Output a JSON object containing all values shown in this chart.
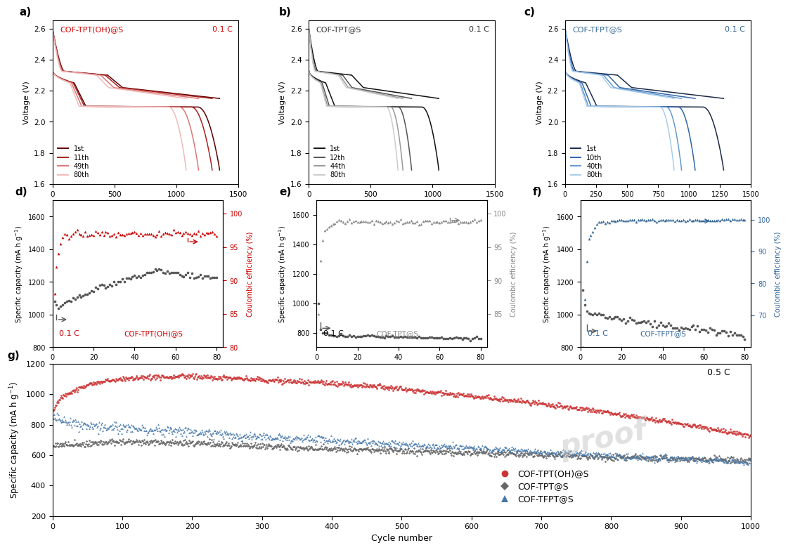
{
  "panel_a": {
    "title": "COF-TPT(OH)@S",
    "rate": "0.1 C",
    "title_color": "#cc0000",
    "rate_color": "#cc0000",
    "legend": [
      "1st",
      "11th",
      "49th",
      "80th"
    ],
    "colors": [
      "#5a0000",
      "#aa2222",
      "#dd7777",
      "#f0bbbb"
    ],
    "caps": [
      1350,
      1290,
      1180,
      1080
    ],
    "xlim": [
      0,
      1500
    ],
    "ylim": [
      1.6,
      2.65
    ],
    "yticks": [
      1.6,
      1.8,
      2.0,
      2.2,
      2.4,
      2.6
    ],
    "xticks": [
      0,
      500,
      1000,
      1500
    ]
  },
  "panel_b": {
    "title": "COF-TPT@S",
    "rate": "0.1 C",
    "title_color": "#333333",
    "rate_color": "#333333",
    "legend": [
      "1st",
      "12th",
      "44th",
      "80th"
    ],
    "colors": [
      "#111111",
      "#555555",
      "#999999",
      "#cccccc"
    ],
    "caps": [
      1050,
      830,
      760,
      720
    ],
    "xlim": [
      0,
      1500
    ],
    "ylim": [
      1.6,
      2.65
    ],
    "yticks": [
      1.6,
      1.8,
      2.0,
      2.2,
      2.4,
      2.6
    ],
    "xticks": [
      0,
      500,
      1000,
      1500
    ]
  },
  "panel_c": {
    "title": "COF-TFPT@S",
    "rate": "0.1 C",
    "title_color": "#336699",
    "rate_color": "#336699",
    "legend": [
      "1st",
      "10th",
      "40th",
      "80th"
    ],
    "colors": [
      "#1a2a4a",
      "#3366aa",
      "#6699cc",
      "#aaccee"
    ],
    "caps": [
      1280,
      1050,
      940,
      880
    ],
    "xlim": [
      0,
      1500
    ],
    "ylim": [
      1.6,
      2.65
    ],
    "yticks": [
      1.6,
      1.8,
      2.0,
      2.2,
      2.4,
      2.6
    ],
    "xticks": [
      0,
      250,
      500,
      750,
      1000,
      1250,
      1500
    ]
  },
  "panel_d": {
    "label": "0.1 C",
    "sublabel": "COF-TPT(OH)@S",
    "cap_color": "#555555",
    "ce_color": "#cc0000",
    "ylim_cap": [
      800,
      1700
    ],
    "ylim_ce": [
      80,
      102
    ],
    "yticks_cap": [
      800,
      1000,
      1200,
      1400,
      1600
    ],
    "yticks_ce": [
      80,
      85,
      90,
      95,
      100
    ]
  },
  "panel_e": {
    "label": "0.1 C",
    "sublabel": "COF-TPT@S",
    "cap_color": "#555555",
    "ce_color": "#888888",
    "ylim_cap": [
      700,
      1700
    ],
    "ylim_ce": [
      80,
      102
    ],
    "yticks_cap": [
      800,
      1000,
      1200,
      1400,
      1600
    ],
    "yticks_ce": [
      85,
      90,
      95,
      100
    ]
  },
  "panel_f": {
    "label": "0.1 C",
    "sublabel": "COF-TFPT@S",
    "cap_color": "#555555",
    "ce_color": "#336699",
    "ylim_cap": [
      800,
      1700
    ],
    "ylim_ce": [
      60,
      106
    ],
    "yticks_cap": [
      800,
      1000,
      1200,
      1400,
      1600
    ],
    "yticks_ce": [
      70,
      80,
      90,
      100
    ]
  },
  "panel_g": {
    "rate": "0.5 C",
    "series": [
      {
        "label": "COF-TPT(OH)@S",
        "color": "#cc3333",
        "marker": "o",
        "markersize": 3
      },
      {
        "label": "COF-TPT@S",
        "color": "#666666",
        "marker": "D",
        "markersize": 3
      },
      {
        "label": "COF-TFPT@S",
        "color": "#4477aa",
        "marker": "^",
        "markersize": 3
      }
    ],
    "xlim": [
      0,
      1000
    ],
    "ylim": [
      200,
      1200
    ],
    "xticks": [
      0,
      100,
      200,
      300,
      400,
      500,
      600,
      700,
      800,
      900,
      1000
    ],
    "yticks": [
      200,
      400,
      600,
      800,
      1000,
      1200
    ]
  }
}
